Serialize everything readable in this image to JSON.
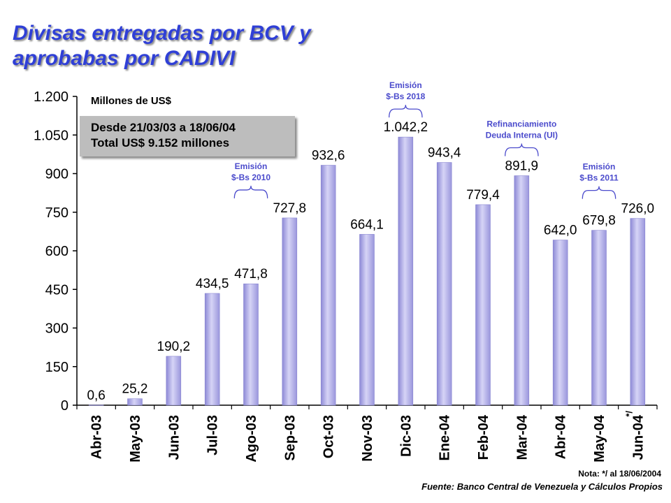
{
  "title_line1": "Divisas entregadas por BCV y",
  "title_line2": "aprobabas por CADIVI",
  "unit_label": "Millones de US$",
  "infobox": {
    "line1": "Desde 21/03/03 a 18/06/04",
    "line2": "Total US$ 9.152 millones"
  },
  "footnote": "Nota: */ al 18/06/2004",
  "source": "Fuente: Banco Central de Venezuela y Cálculos Propios",
  "colors": {
    "title": "#2f3fd6",
    "bar": "#b3b0ea",
    "annotation": "#4b4bcc"
  },
  "chart_data": {
    "type": "bar",
    "categories": [
      "Abr-03",
      "May-03",
      "Jun-03",
      "Jul-03",
      "Ago-03",
      "Sep-03",
      "Oct-03",
      "Nov-03",
      "Dic-03",
      "Ene-04",
      "Feb-04",
      "Mar-04",
      "Abr-04",
      "May-04",
      "Jun-04"
    ],
    "values": [
      0.6,
      25.2,
      190.2,
      434.5,
      471.8,
      727.8,
      932.6,
      664.1,
      1042.2,
      943.4,
      779.4,
      891.9,
      642.0,
      679.8,
      726.0
    ],
    "value_labels": [
      "0,6",
      "25,2",
      "190,2",
      "434,5",
      "471,8",
      "727,8",
      "932,6",
      "664,1",
      "1.042,2",
      "943,4",
      "779,4",
      "891,9",
      "642,0",
      "679,8",
      "726,0"
    ],
    "y_ticks": [
      0,
      150,
      300,
      450,
      600,
      750,
      900,
      1050,
      1200
    ],
    "y_tick_labels": [
      "0",
      "150",
      "300",
      "450",
      "600",
      "750",
      "900",
      "1.050",
      "1.200"
    ],
    "ylim": [
      0,
      1200
    ],
    "last_category_mark": "*/",
    "annotations": [
      {
        "lines": [
          "Emisión",
          "$-Bs 2010"
        ],
        "from_category": 4,
        "to_category": 5
      },
      {
        "lines": [
          "Emisión",
          "$-Bs 2018"
        ],
        "from_category": 8,
        "to_category": 9
      },
      {
        "lines": [
          "Refinanciamiento",
          "Deuda Interna (UI)"
        ],
        "from_category": 11,
        "to_category": 12
      },
      {
        "lines": [
          "Emisión",
          "$-Bs 2011"
        ],
        "from_category": 13,
        "to_category": 14
      }
    ]
  }
}
